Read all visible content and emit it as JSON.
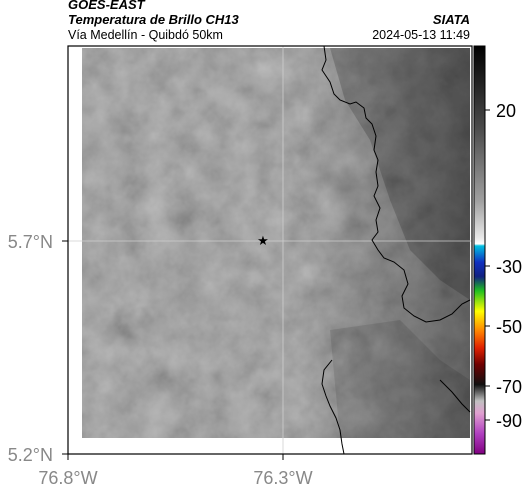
{
  "header": {
    "satellite": "GOES-EAST",
    "product": "Temperatura de Brillo CH13",
    "region": "Vía Medellín - Quibdó 50km",
    "agency": "SIATA",
    "datetime": "2024-05-13 11:49"
  },
  "map": {
    "lat_labels": [
      "5.7°N",
      "5.2°N"
    ],
    "lon_labels": [
      "76.8°W",
      "76.3°W"
    ],
    "marker": "star-marker",
    "grid": true
  },
  "colorbar": {
    "ticks": [
      "20",
      "-30",
      "-50",
      "-70",
      "-90"
    ],
    "colors": {
      "warm": "#ffffff",
      "cold_top": "#000000",
      "cyan": "#00c0e0",
      "blue": "#1030c0",
      "green": "#20c020",
      "yellow": "#ffff00",
      "red": "#e02000",
      "dark_red": "#700000",
      "magenta": "#b040c0"
    }
  }
}
